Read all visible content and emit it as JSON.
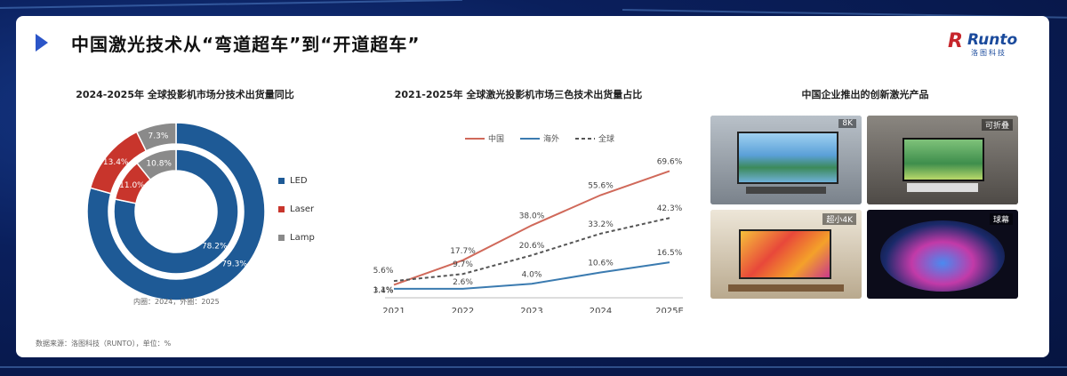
{
  "page": {
    "title": "中国激光技术从“弯道超车”到“开道超车”",
    "logo_text": "Runto",
    "logo_sub": "洛图科技",
    "source": "数据来源：洛图科技（RUNTO），单位：%"
  },
  "left_chart": {
    "title": "2024-2025年 全球投影机市场分技术出货量同比",
    "note": "内圈：2024，外圈：2025"
  },
  "middle_chart": {
    "title": "2021-2025年 全球激光投影机市场三色技术出货量占比"
  },
  "right_panel": {
    "title": "中国企业推出的创新激光产品",
    "products": [
      {
        "tag": "8K"
      },
      {
        "tag": "可折叠"
      },
      {
        "tag": "超小4K"
      },
      {
        "tag": "球幕"
      }
    ]
  },
  "colors": {
    "led": "#1e5a96",
    "laser": "#c8352c",
    "lamp": "#8a8a8a",
    "china": "#d0695a",
    "overseas": "#3b7bb0",
    "global": "#555555"
  },
  "chart_data": [
    {
      "type": "pie",
      "subtype": "donut",
      "categories": [
        "LED",
        "Laser",
        "Lamp"
      ],
      "series": [
        {
          "name": "2024",
          "ring": "inner",
          "values": [
            78.2,
            11.0,
            10.8
          ],
          "labels": [
            "78.2%",
            "11.0%",
            "10.8%"
          ]
        },
        {
          "name": "2025",
          "ring": "outer",
          "values": [
            79.3,
            13.4,
            7.3
          ],
          "labels": [
            "79.3%",
            "13.4%",
            "7.3%"
          ]
        }
      ],
      "legend_position": "right"
    },
    {
      "type": "line",
      "categories": [
        "2021",
        "2022",
        "2023",
        "2024",
        "2025E"
      ],
      "series": [
        {
          "name": "中国",
          "values": [
            3.4,
            17.7,
            38.0,
            55.6,
            69.6
          ],
          "labels": [
            "3.4%",
            "17.7%",
            "38.0%",
            "55.6%",
            "69.6%"
          ]
        },
        {
          "name": "海外",
          "values": [
            1.1,
            1.1,
            4.0,
            10.6,
            16.5
          ],
          "labels": [
            "1.1%",
            "",
            "4.0%",
            "10.6%",
            "16.5%"
          ]
        },
        {
          "name": "全球",
          "values": [
            5.6,
            9.7,
            20.6,
            33.2,
            42.3
          ],
          "labels": [
            "5.6%",
            "9.7%",
            "20.6%",
            "33.2%",
            "42.3%"
          ]
        }
      ],
      "extra_labels": [
        "2.6%"
      ],
      "ylim": [
        0,
        75
      ],
      "legend_position": "top",
      "grid": false
    }
  ]
}
